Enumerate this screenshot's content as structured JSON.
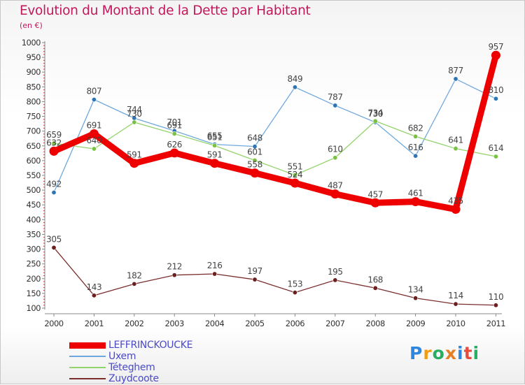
{
  "title": "Evolution du Montant de la Dette par Habitant",
  "subtitle": "(en €)",
  "logo": {
    "text": "Proxiti",
    "colors": [
      "#2e86de",
      "#f39c12",
      "#27ae60",
      "#e67e22",
      "#2e86de",
      "#e74c3c",
      "#27ae60"
    ]
  },
  "chart_data": {
    "type": "line",
    "x": [
      "2000",
      "2001",
      "2002",
      "2003",
      "2004",
      "2005",
      "2006",
      "2007",
      "2008",
      "2009",
      "2010",
      "2011"
    ],
    "ylim": [
      100,
      1000
    ],
    "yticks": [
      100,
      150,
      200,
      250,
      300,
      350,
      400,
      450,
      500,
      550,
      600,
      650,
      700,
      750,
      800,
      850,
      900,
      950,
      1000
    ],
    "grid": false,
    "legend_position": "bottom-left",
    "series": [
      {
        "name": "LEFFRINCKOUCKE",
        "color": "#ee0000",
        "values": [
          632,
          691,
          591,
          626,
          591,
          558,
          524,
          487,
          457,
          461,
          435,
          957
        ],
        "labels": [
          "632",
          "691",
          "591",
          "626",
          "591",
          "558",
          "524",
          "487",
          "457",
          "461",
          "435",
          "957"
        ],
        "thick": true
      },
      {
        "name": "Uxem",
        "color": "#6fa8dc",
        "marker": "#2e75b6",
        "values": [
          492,
          807,
          744,
          701,
          655,
          648,
          849,
          787,
          730,
          616,
          877,
          810
        ],
        "labels": [
          "492",
          "807",
          "744",
          "701",
          "655",
          "648",
          "849",
          "787",
          "730",
          "616",
          "877",
          "810"
        ]
      },
      {
        "name": "Téteghem",
        "color": "#93d36b",
        "marker": "#7ac143",
        "values": [
          659,
          640,
          730,
          691,
          651,
          601,
          551,
          610,
          734,
          682,
          641,
          614
        ],
        "labels": [
          "659",
          "640",
          "730",
          "691",
          "651",
          "601",
          "551",
          "610",
          "734",
          "682",
          "641",
          "614"
        ]
      },
      {
        "name": "Zuydcoote",
        "color": "#7b2d2d",
        "marker": "#6b1f1f",
        "values": [
          305,
          143,
          182,
          212,
          216,
          197,
          153,
          195,
          168,
          134,
          114,
          110
        ],
        "labels": [
          "305",
          "143",
          "182",
          "212",
          "216",
          "197",
          "153",
          "195",
          "168",
          "134",
          "114",
          "110"
        ]
      }
    ]
  }
}
